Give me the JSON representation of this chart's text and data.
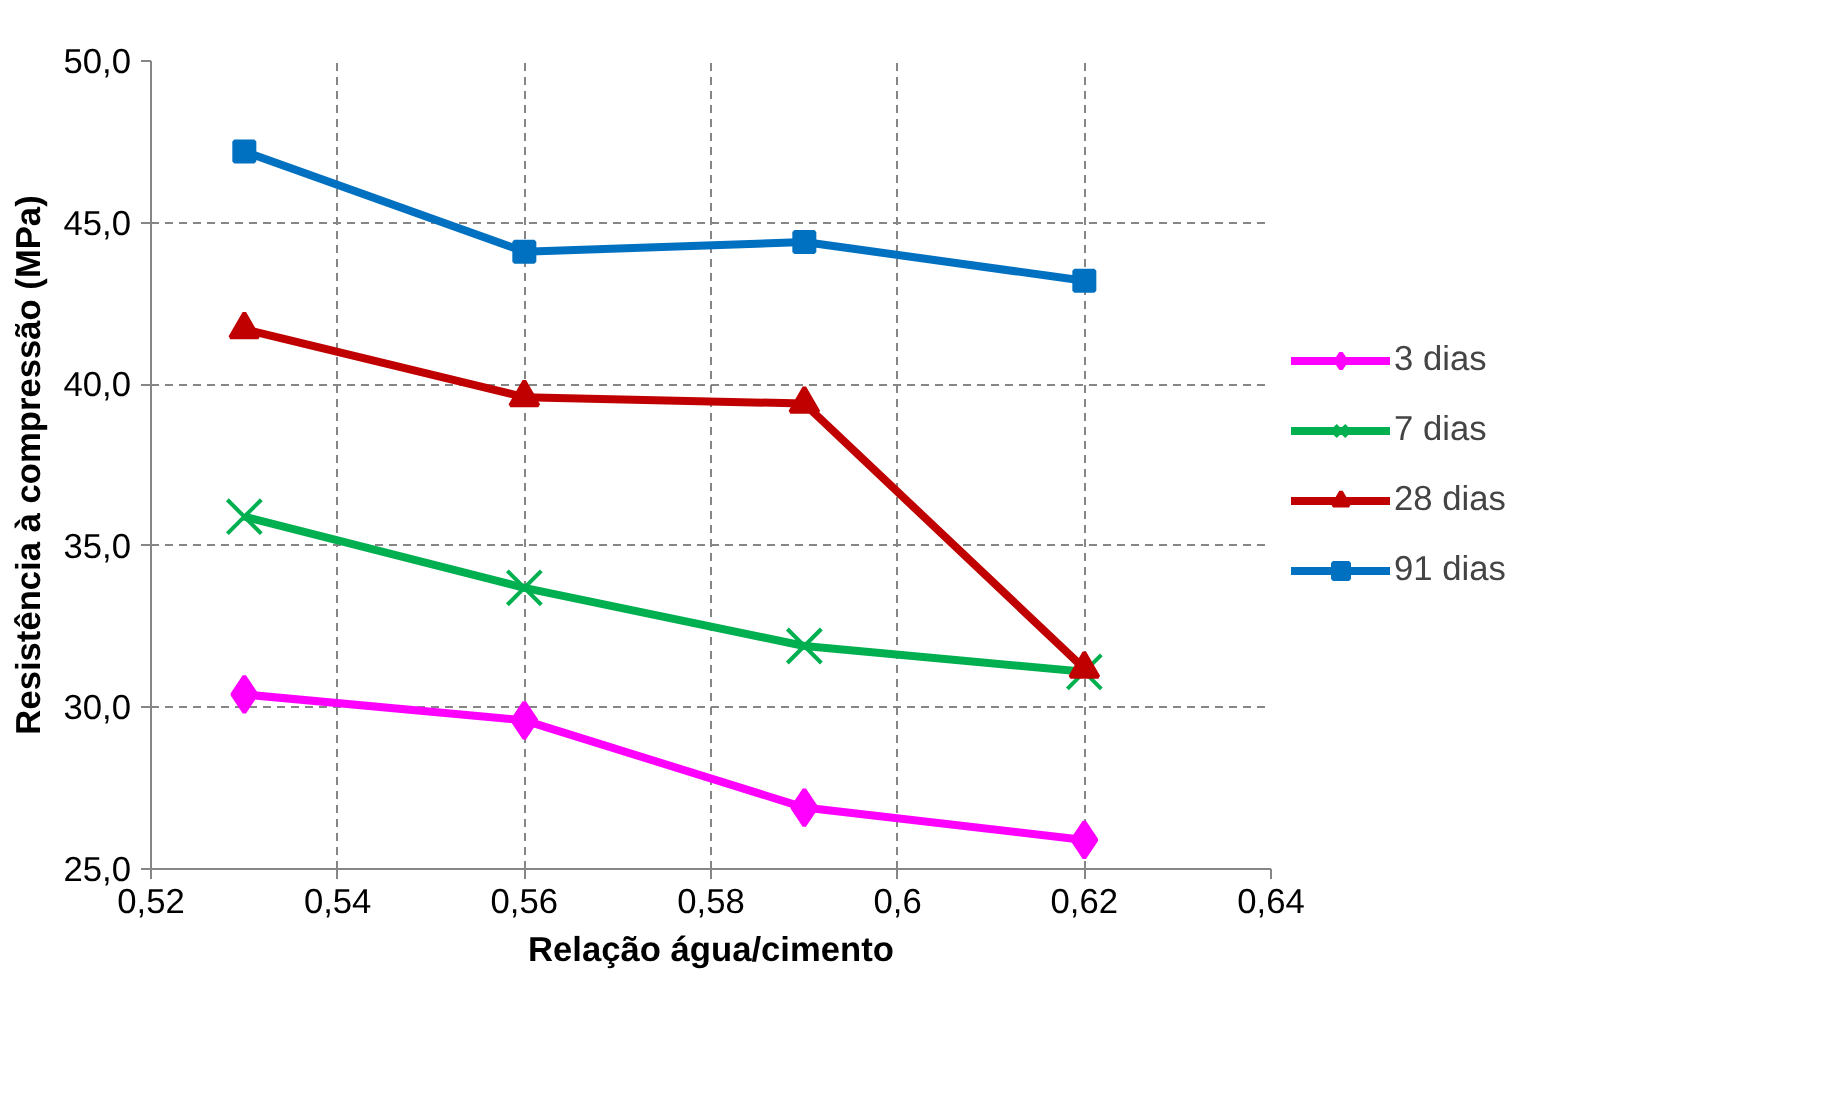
{
  "chart_data": {
    "type": "line",
    "xlabel": "Relação água/cimento",
    "ylabel": "Resistência à compressão (MPa)",
    "x": [
      0.53,
      0.56,
      0.59,
      0.62
    ],
    "xlim": [
      0.52,
      0.64
    ],
    "xticks": [
      {
        "value": 0.52,
        "label": "0,52"
      },
      {
        "value": 0.54,
        "label": "0,54"
      },
      {
        "value": 0.56,
        "label": "0,56"
      },
      {
        "value": 0.58,
        "label": "0,58"
      },
      {
        "value": 0.6,
        "label": "0,6"
      },
      {
        "value": 0.62,
        "label": "0,62"
      },
      {
        "value": 0.64,
        "label": "0,64"
      }
    ],
    "ylim": [
      25,
      50
    ],
    "yticks": [
      {
        "value": 25,
        "label": "25,0"
      },
      {
        "value": 30,
        "label": "30,0"
      },
      {
        "value": 35,
        "label": "35,0"
      },
      {
        "value": 40,
        "label": "40,0"
      },
      {
        "value": 45,
        "label": "45,0"
      },
      {
        "value": 50,
        "label": "50,0"
      }
    ],
    "grid": true,
    "legend": "right",
    "line_style": "solid",
    "series": [
      {
        "name": "3 dias",
        "color": "#ff00ff",
        "marker": "diamond",
        "values": [
          30.4,
          29.6,
          26.9,
          25.9
        ]
      },
      {
        "name": "7 dias",
        "color": "#00b050",
        "marker": "cross",
        "values": [
          35.9,
          33.7,
          31.9,
          31.1
        ]
      },
      {
        "name": "28 dias",
        "color": "#c00000",
        "marker": "triangle",
        "values": [
          41.7,
          39.6,
          39.4,
          31.2
        ]
      },
      {
        "name": "91 dias",
        "color": "#0070c0",
        "marker": "square",
        "values": [
          47.2,
          44.1,
          44.4,
          43.2
        ]
      }
    ]
  }
}
